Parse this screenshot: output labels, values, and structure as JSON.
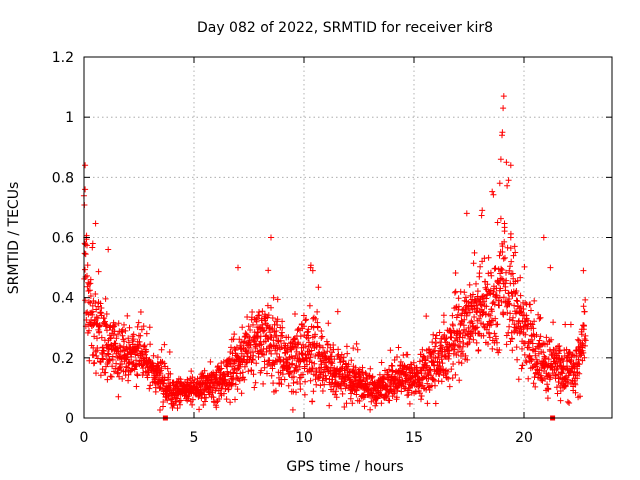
{
  "chart_data": {
    "type": "scatter",
    "title": "Day 082 of 2022, SRMTID for receiver kir8",
    "xlabel": "GPS time / hours",
    "ylabel": "SRMTID / TECUs",
    "xlim": [
      0,
      24
    ],
    "ylim": [
      0,
      1.2
    ],
    "xticks": [
      {
        "value": 0,
        "label": "0"
      },
      {
        "value": 5,
        "label": "5"
      },
      {
        "value": 10,
        "label": "10"
      },
      {
        "value": 15,
        "label": "15"
      },
      {
        "value": 20,
        "label": "20"
      }
    ],
    "yticks": [
      {
        "value": 0,
        "label": "0"
      },
      {
        "value": 0.2,
        "label": "0.2"
      },
      {
        "value": 0.4,
        "label": "0.4"
      },
      {
        "value": 0.6,
        "label": "0.6"
      },
      {
        "value": 0.8,
        "label": "0.8"
      },
      {
        "value": 1.0,
        "label": "1"
      },
      {
        "value": 1.2,
        "label": "1.2"
      }
    ],
    "grid": true,
    "marker": "+",
    "color": "#ff0000",
    "x_range_data": [
      0,
      22.8
    ],
    "envelope": {
      "x": [
        0.0,
        0.1,
        0.3,
        0.6,
        1.0,
        1.5,
        2.0,
        2.5,
        3.0,
        3.5,
        4.0,
        4.5,
        5.0,
        5.5,
        6.0,
        6.5,
        7.0,
        7.5,
        8.0,
        8.5,
        9.0,
        9.5,
        10.0,
        10.5,
        11.0,
        11.5,
        12.0,
        12.5,
        13.0,
        13.5,
        14.0,
        14.5,
        15.0,
        15.5,
        16.0,
        16.5,
        17.0,
        17.5,
        18.0,
        18.5,
        19.0,
        19.5,
        20.0,
        20.5,
        21.0,
        21.5,
        22.0,
        22.5,
        22.8
      ],
      "level": [
        0.55,
        0.45,
        0.35,
        0.28,
        0.25,
        0.2,
        0.2,
        0.22,
        0.17,
        0.12,
        0.09,
        0.09,
        0.09,
        0.1,
        0.12,
        0.14,
        0.18,
        0.22,
        0.26,
        0.24,
        0.21,
        0.19,
        0.2,
        0.23,
        0.18,
        0.15,
        0.13,
        0.12,
        0.1,
        0.1,
        0.12,
        0.13,
        0.13,
        0.15,
        0.19,
        0.22,
        0.27,
        0.32,
        0.38,
        0.34,
        0.45,
        0.4,
        0.3,
        0.22,
        0.18,
        0.17,
        0.15,
        0.19,
        0.3
      ],
      "spread": [
        0.15,
        0.15,
        0.1,
        0.1,
        0.1,
        0.07,
        0.06,
        0.06,
        0.05,
        0.05,
        0.04,
        0.03,
        0.03,
        0.04,
        0.05,
        0.06,
        0.07,
        0.08,
        0.09,
        0.09,
        0.08,
        0.08,
        0.09,
        0.09,
        0.08,
        0.06,
        0.05,
        0.05,
        0.04,
        0.04,
        0.05,
        0.05,
        0.05,
        0.06,
        0.07,
        0.08,
        0.1,
        0.11,
        0.11,
        0.11,
        0.13,
        0.12,
        0.1,
        0.08,
        0.07,
        0.06,
        0.06,
        0.08,
        0.09
      ]
    },
    "outliers": [
      {
        "x": 0.05,
        "y": 0.84
      },
      {
        "x": 0.05,
        "y": 0.76
      },
      {
        "x": 0.1,
        "y": 0.6
      },
      {
        "x": 0.4,
        "y": 0.58
      },
      {
        "x": 1.1,
        "y": 0.56
      },
      {
        "x": 8.5,
        "y": 0.6
      },
      {
        "x": 7.0,
        "y": 0.5
      },
      {
        "x": 10.3,
        "y": 0.5
      },
      {
        "x": 10.4,
        "y": 0.49
      },
      {
        "x": 17.4,
        "y": 0.68
      },
      {
        "x": 18.1,
        "y": 0.69
      },
      {
        "x": 18.8,
        "y": 0.65
      },
      {
        "x": 18.9,
        "y": 0.78
      },
      {
        "x": 18.95,
        "y": 0.86
      },
      {
        "x": 19.0,
        "y": 0.94
      },
      {
        "x": 19.02,
        "y": 0.95
      },
      {
        "x": 19.05,
        "y": 1.03
      },
      {
        "x": 19.08,
        "y": 1.07
      },
      {
        "x": 19.2,
        "y": 0.85
      },
      {
        "x": 19.3,
        "y": 0.79
      },
      {
        "x": 19.4,
        "y": 0.84
      },
      {
        "x": 19.4,
        "y": 0.6
      },
      {
        "x": 19.6,
        "y": 0.55
      },
      {
        "x": 20.9,
        "y": 0.6
      },
      {
        "x": 21.2,
        "y": 0.5
      },
      {
        "x": 22.7,
        "y": 0.49
      }
    ],
    "gap_markers": [
      {
        "x": 3.7,
        "y": 0.0
      },
      {
        "x": 21.3,
        "y": 0.0
      }
    ]
  }
}
